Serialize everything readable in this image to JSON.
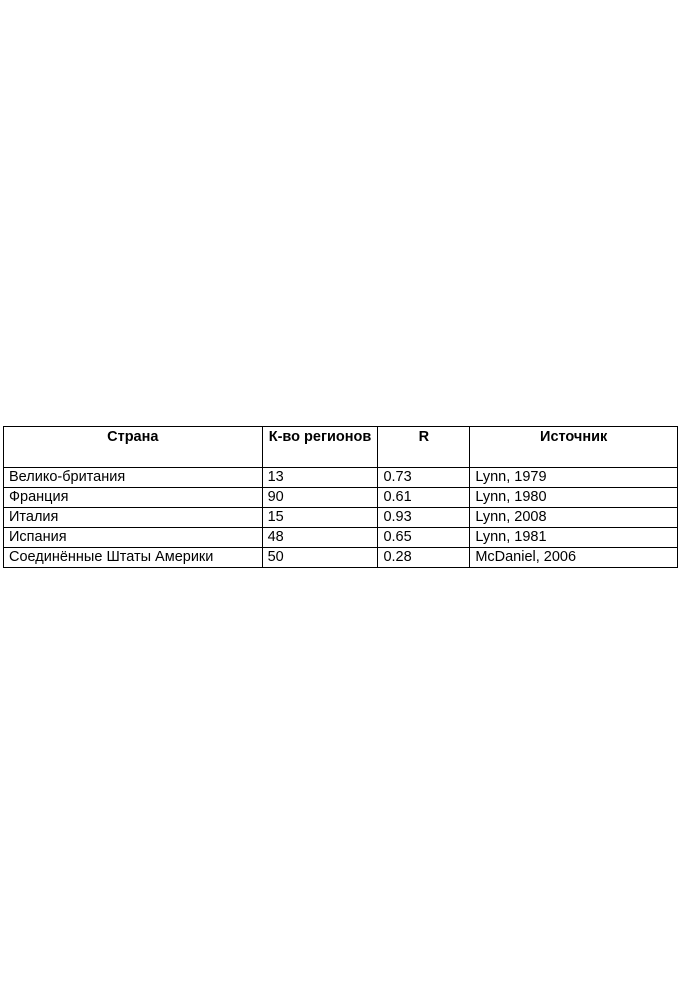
{
  "table": {
    "headers": [
      "Страна",
      "К-во регионов",
      "R",
      "Источник"
    ],
    "rows": [
      [
        "Велико-британия",
        "13",
        "0.73",
        "Lynn, 1979"
      ],
      [
        "Франция",
        "90",
        "0.61",
        "Lynn, 1980"
      ],
      [
        "Италия",
        "15",
        "0.93",
        "Lynn, 2008"
      ],
      [
        "Испания",
        "48",
        "0.65",
        "Lynn, 1981"
      ],
      [
        "Соединённые Штаты Америки",
        "50",
        "0.28",
        "McDaniel, 2006"
      ]
    ]
  }
}
